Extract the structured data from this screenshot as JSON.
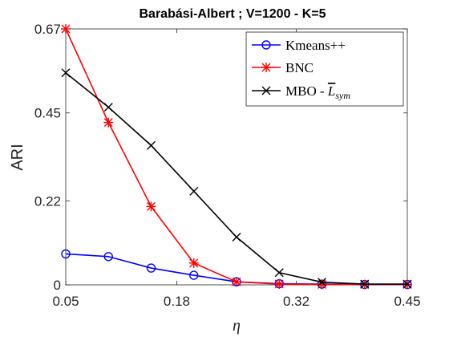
{
  "chart_data": {
    "type": "line",
    "title": "Barabási-Albert ; V=1200 - K=5",
    "xlabel": "η",
    "ylabel": "ARI",
    "xlim": [
      0.05,
      0.45
    ],
    "ylim": [
      0,
      0.67
    ],
    "xticks": [
      0.05,
      0.18,
      0.32,
      0.45
    ],
    "xtick_labels": [
      "0.05",
      "0.18",
      "0.32",
      "0.45"
    ],
    "yticks": [
      0,
      0.22,
      0.45,
      0.67
    ],
    "ytick_labels": [
      "0",
      "0.22",
      "0.45",
      "0.67"
    ],
    "grid": false,
    "legend_position": "top-right",
    "x": [
      0.05,
      0.1,
      0.15,
      0.2,
      0.25,
      0.3,
      0.35,
      0.4,
      0.45
    ],
    "series": [
      {
        "name": "Kmeans++",
        "color": "#0000ff",
        "marker": "circle",
        "values": [
          0.081,
          0.074,
          0.044,
          0.025,
          0.008,
          0.003,
          0.002,
          0.001,
          0.001
        ]
      },
      {
        "name": "BNC",
        "color": "#ff0000",
        "marker": "star",
        "values": [
          0.67,
          0.425,
          0.205,
          0.057,
          0.008,
          0.002,
          0.001,
          0.001,
          0.001
        ]
      },
      {
        "name": "MBO - ",
        "name_math_base": "L",
        "name_math_sub": "sym",
        "color": "#000000",
        "marker": "x",
        "values": [
          0.555,
          0.465,
          0.365,
          0.245,
          0.125,
          0.032,
          0.007,
          0.002,
          0.002
        ]
      }
    ]
  }
}
